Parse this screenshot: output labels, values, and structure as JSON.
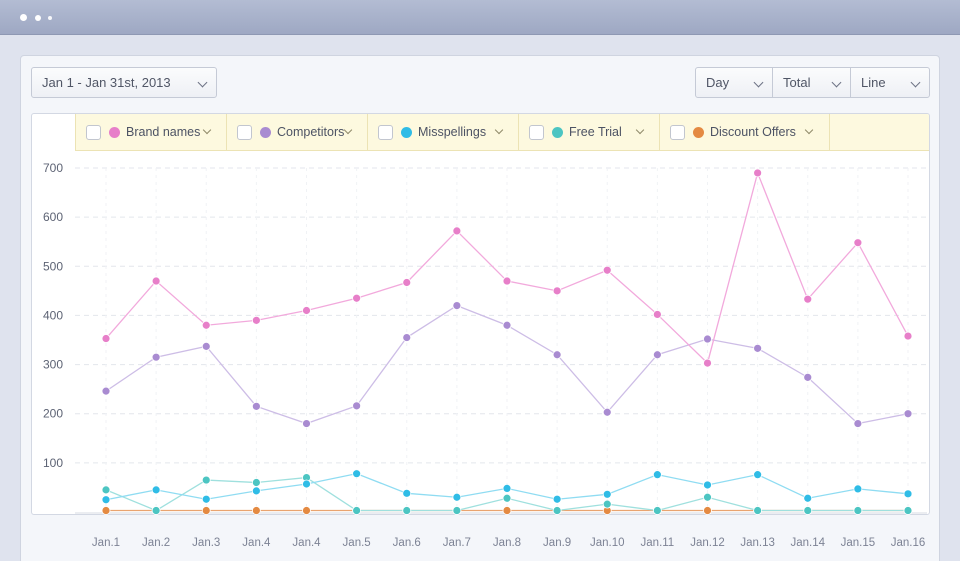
{
  "controls": {
    "date_range": "Jan 1 - Jan 31st, 2013",
    "interval": "Day",
    "aggregate": "Total",
    "chart_style": "Line"
  },
  "legend": [
    {
      "label": "Brand names",
      "color": "#e77fc9"
    },
    {
      "label": "Competitors",
      "color": "#a98bd1"
    },
    {
      "label": "Misspellings",
      "color": "#2fbce6"
    },
    {
      "label": "Free Trial",
      "color": "#4cc5c2"
    },
    {
      "label": "Discount Offers",
      "color": "#e48a42"
    }
  ],
  "chart_data": {
    "type": "line",
    "categories": [
      "Jan.1",
      "Jan.2",
      "Jan.3",
      "Jan.4",
      "Jan.4",
      "Jan.5",
      "Jan.6",
      "Jan.7",
      "Jan.8",
      "Jan.9",
      "Jan.10",
      "Jan.11",
      "Jan.12",
      "Jan.13",
      "Jan.14",
      "Jan.15",
      "Jan.16"
    ],
    "y_ticks": [
      100,
      200,
      300,
      400,
      500,
      600,
      700
    ],
    "ylim": [
      0,
      700
    ],
    "grid": true,
    "series": [
      {
        "name": "Brand names",
        "color": "#e77fc9",
        "line_color": "#f2a9dc",
        "values": [
          353,
          470,
          380,
          390,
          410,
          435,
          467,
          572,
          470,
          450,
          492,
          402,
          303,
          690,
          433,
          548,
          358
        ]
      },
      {
        "name": "Competitors",
        "color": "#a98bd1",
        "line_color": "#cdbde6",
        "values": [
          246,
          315,
          337,
          215,
          180,
          216,
          355,
          420,
          380,
          320,
          203,
          320,
          352,
          333,
          274,
          180,
          200
        ]
      },
      {
        "name": "Misspellings",
        "color": "#2fbce6",
        "line_color": "#8fdcf2",
        "values": [
          25,
          45,
          26,
          43,
          57,
          78,
          38,
          30,
          48,
          26,
          36,
          76,
          55,
          76,
          28,
          47,
          37
        ]
      },
      {
        "name": "Free Trial",
        "color": "#4cc5c2",
        "line_color": "#9fe0de",
        "values": [
          45,
          3,
          65,
          60,
          70,
          3,
          3,
          3,
          28,
          3,
          16,
          3,
          30,
          3,
          3,
          3,
          3
        ]
      },
      {
        "name": "Discount Offers",
        "color": "#e48a42",
        "line_color": "#e9a470",
        "values": [
          3,
          3,
          3,
          3,
          3,
          3,
          3,
          3,
          3,
          3,
          3,
          3,
          3,
          3,
          3,
          3,
          3
        ]
      }
    ]
  }
}
